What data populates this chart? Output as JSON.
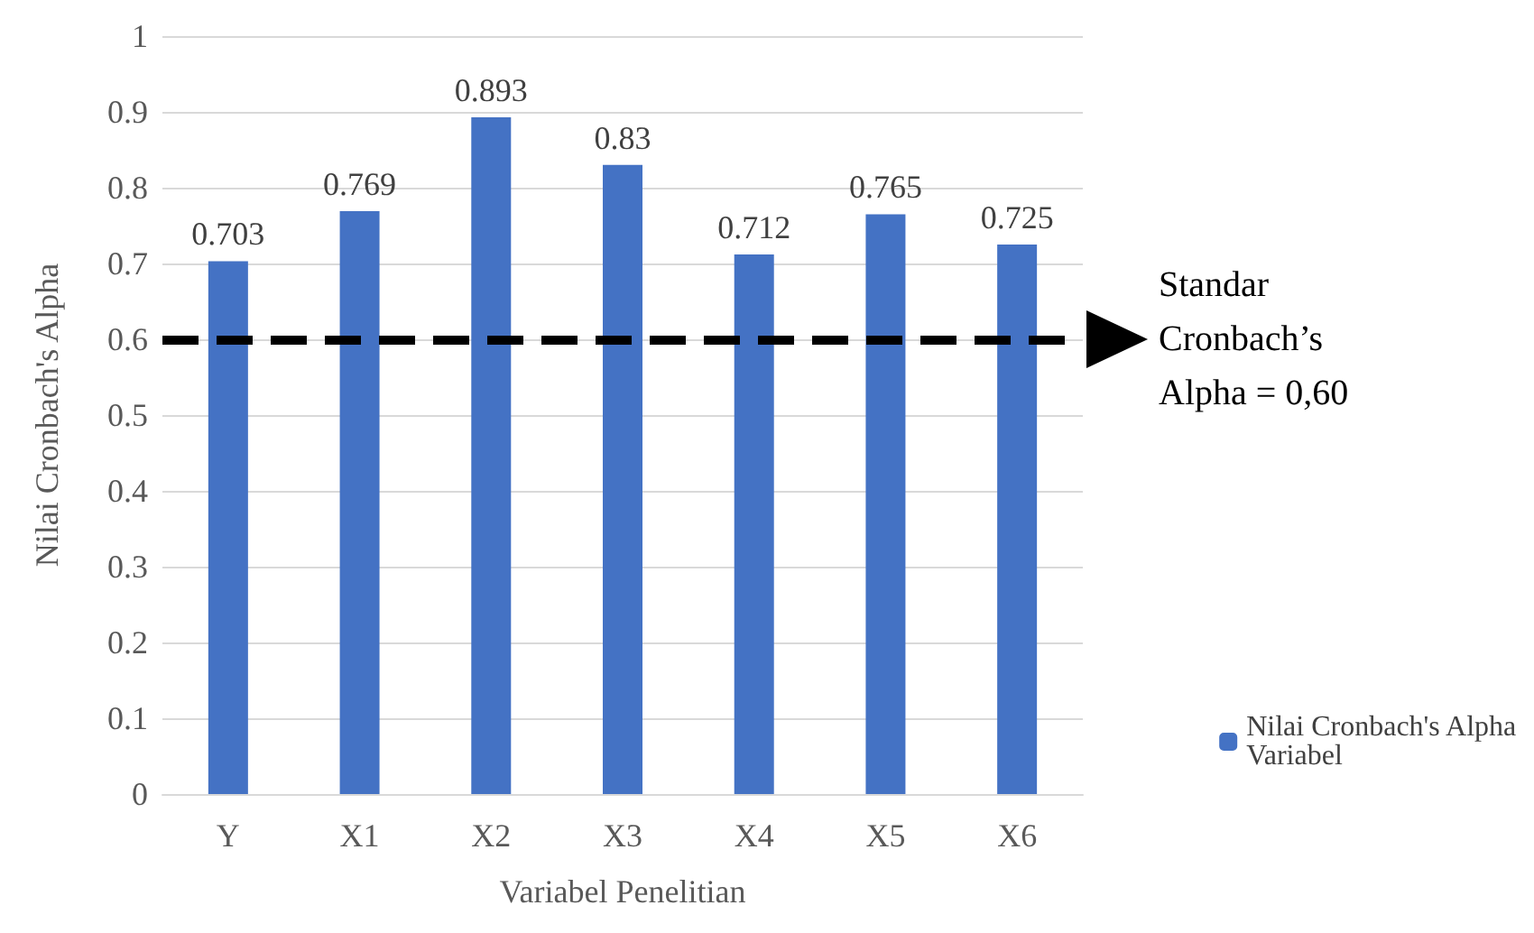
{
  "chart_data": {
    "type": "bar",
    "xlabel": "Variabel Penelitian",
    "ylabel": "Nilai Cronbach's Alpha",
    "categories": [
      "Y",
      "X1",
      "X2",
      "X3",
      "X4",
      "X5",
      "X6"
    ],
    "series": [
      {
        "name": "Nilai Cronbach's Alpha Variabel",
        "color": "#4472c4",
        "values": [
          0.703,
          0.769,
          0.893,
          0.83,
          0.712,
          0.765,
          0.725
        ]
      }
    ],
    "ylim": [
      0,
      1
    ],
    "yticks": [
      0,
      0.1,
      0.2,
      0.3,
      0.4,
      0.5,
      0.6,
      0.7,
      0.8,
      0.9,
      1
    ],
    "grid": "y",
    "legend": "bottom right",
    "data_labels": true,
    "ref_lines": [
      {
        "axis": "y",
        "value": 0.6,
        "label": "Standar Cronbach’s Alpha = 0,60",
        "color": "#000000",
        "line_style": "dashed"
      }
    ]
  }
}
